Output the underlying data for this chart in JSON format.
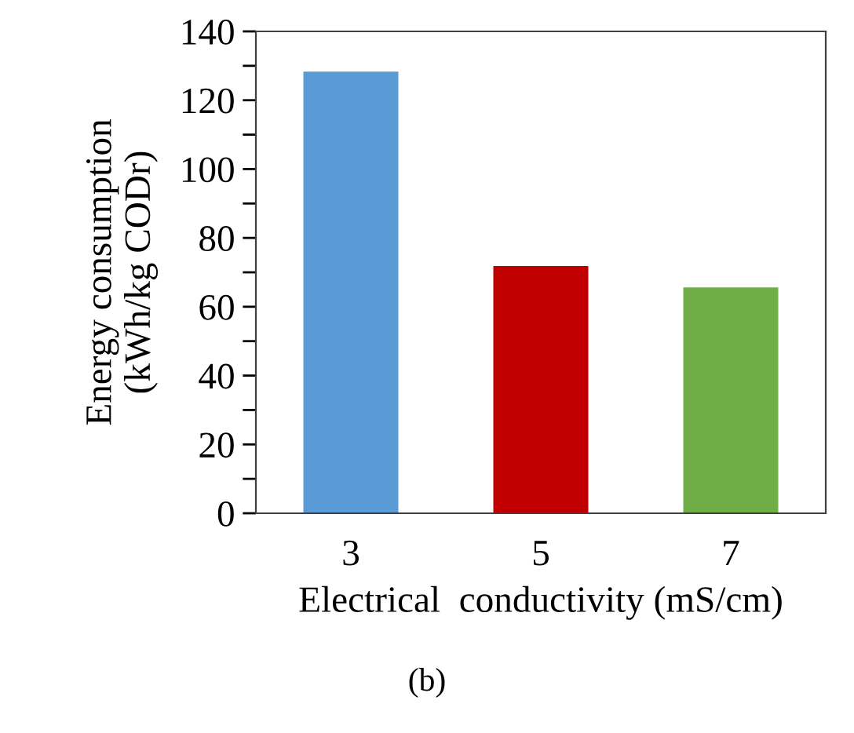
{
  "chart_data": {
    "type": "bar",
    "xlabel": "Electrical  conductivity (mS/cm)",
    "ylabel": "Energy consumption\n(kWh/kg CODr)",
    "categories": [
      "3",
      "5",
      "7"
    ],
    "values": [
      128.3,
      71.8,
      65.6
    ],
    "colors": [
      "#5b9bd5",
      "#c00000",
      "#70ad47"
    ],
    "ylim": [
      0,
      140
    ],
    "yticks": [
      0,
      {
        "value": 10,
        "label": null
      },
      20,
      {
        "value": 30,
        "label": null
      },
      40,
      {
        "value": 50,
        "label": null
      },
      60,
      {
        "value": 70,
        "label": null
      },
      80,
      {
        "value": 90,
        "label": null
      },
      100,
      {
        "value": 110,
        "label": null
      },
      120,
      {
        "value": 130,
        "label": null
      },
      140
    ],
    "grid": false,
    "annotations": [
      "(b)"
    ]
  }
}
